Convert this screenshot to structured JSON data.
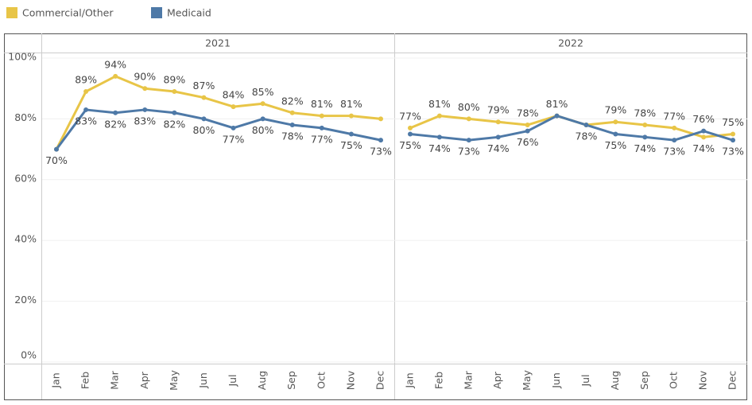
{
  "chart_data": {
    "type": "line",
    "categories": [
      "Jan",
      "Feb",
      "Mar",
      "Apr",
      "May",
      "Jun",
      "Jul",
      "Aug",
      "Sep",
      "Oct",
      "Nov",
      "Dec"
    ],
    "ylim": [
      0,
      100
    ],
    "yticks": [
      {
        "value": 0,
        "label": "0%"
      },
      {
        "value": 20,
        "label": "20%"
      },
      {
        "value": 40,
        "label": "40%"
      },
      {
        "value": 60,
        "label": "60%"
      },
      {
        "value": 80,
        "label": "80%"
      },
      {
        "value": 100,
        "label": "100%"
      }
    ],
    "grid": true,
    "series": [
      {
        "name": "Commercial/Other",
        "color": "#e8c547"
      },
      {
        "name": "Medicaid",
        "color": "#4e79a7"
      }
    ],
    "panels": [
      {
        "title": "2021",
        "series": [
          {
            "values": [
              70,
              89,
              94,
              90,
              89,
              87,
              84,
              85,
              82,
              81,
              81,
              80
            ],
            "value_labels": [
              null,
              "89%",
              "94%",
              "90%",
              "89%",
              "87%",
              "84%",
              "85%",
              "82%",
              "81%",
              "81%",
              null
            ]
          },
          {
            "values": [
              70,
              83,
              82,
              83,
              82,
              80,
              77,
              80,
              78,
              77,
              75,
              73
            ],
            "value_labels": [
              "70%",
              "83%",
              "82%",
              "83%",
              "82%",
              "80%",
              "77%",
              "80%",
              "78%",
              "77%",
              "75%",
              "73%"
            ]
          }
        ]
      },
      {
        "title": "2022",
        "series": [
          {
            "values": [
              77,
              81,
              80,
              79,
              78,
              81,
              78,
              79,
              78,
              77,
              74,
              75
            ],
            "value_labels": [
              "77%",
              "81%",
              "80%",
              "79%",
              "78%",
              "81%",
              null,
              "79%",
              "78%",
              "77%",
              "74%",
              "75%"
            ]
          },
          {
            "values": [
              75,
              74,
              73,
              74,
              76,
              81,
              78,
              75,
              74,
              73,
              76,
              73
            ],
            "value_labels": [
              "75%",
              "74%",
              "73%",
              "74%",
              "76%",
              null,
              "78%",
              "75%",
              "74%",
              "73%",
              "76%",
              "73%"
            ]
          }
        ]
      }
    ]
  }
}
